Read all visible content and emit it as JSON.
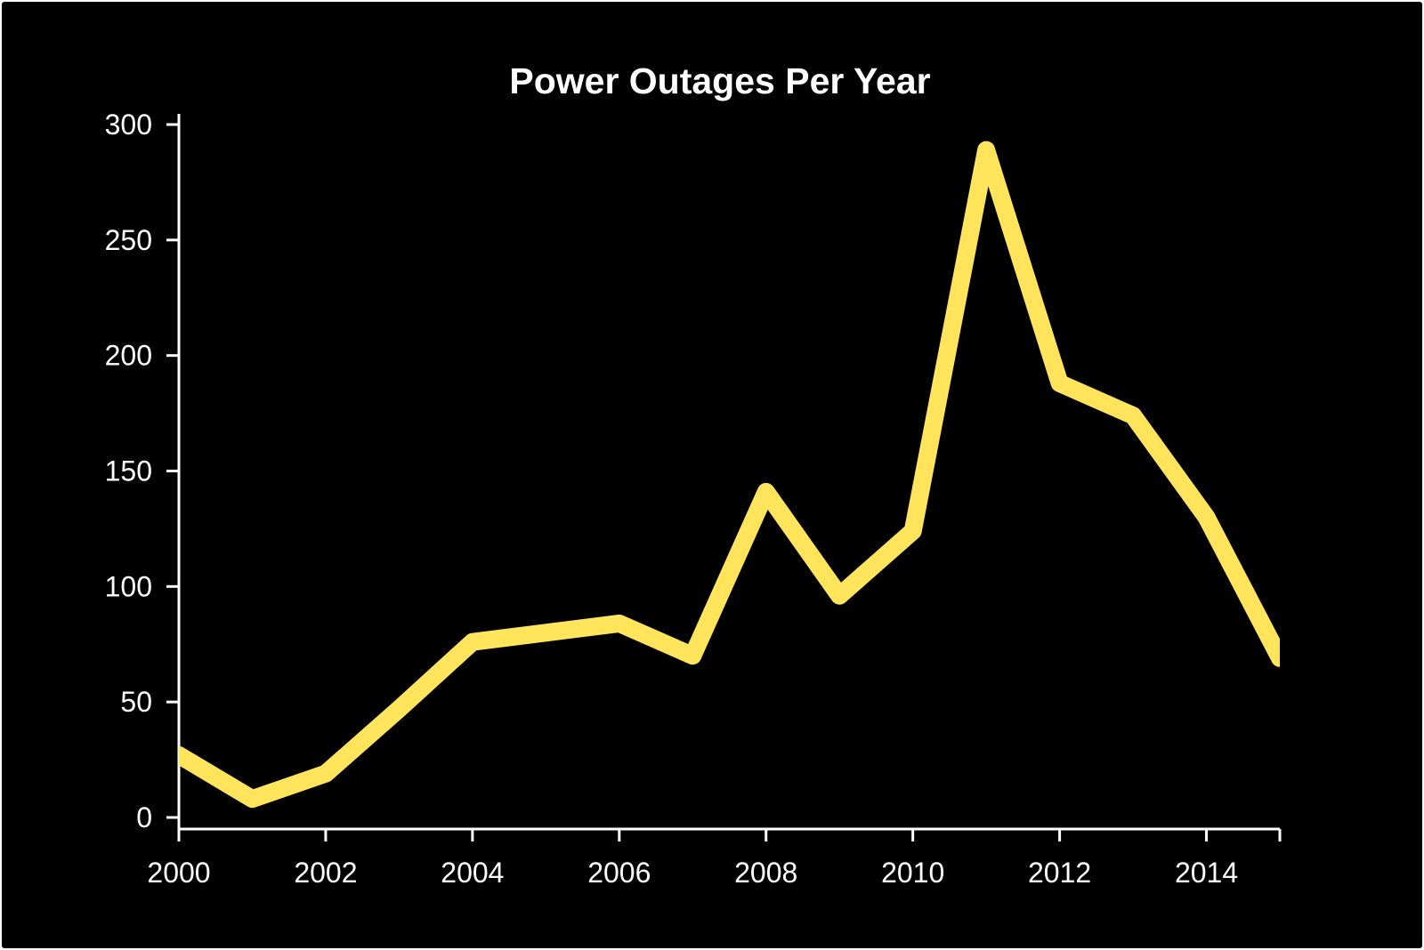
{
  "chart_data": {
    "type": "line",
    "title": "Power Outages Per Year",
    "xlabel": "",
    "ylabel": "",
    "x": [
      2000,
      2001,
      2002,
      2003,
      2004,
      2005,
      2006,
      2007,
      2008,
      2009,
      2010,
      2011,
      2012,
      2013,
      2014,
      2015
    ],
    "series": [
      {
        "values": [
          27,
          8,
          19,
          47,
          76,
          80,
          84,
          70,
          141,
          96,
          124,
          289,
          188,
          174,
          130,
          69
        ],
        "color": "#ffe45c"
      }
    ],
    "xlim": [
      2000,
      2015
    ],
    "ylim": [
      0,
      300
    ],
    "xticks": [
      "2000",
      "2002",
      "2004",
      "2006",
      "2008",
      "2010",
      "2012",
      "2014"
    ],
    "yticks": [
      "0",
      "50",
      "100",
      "150",
      "200",
      "250",
      "300"
    ],
    "grid": false,
    "legend": "none",
    "colors": {
      "background": "#000000",
      "axis": "#ffffff",
      "text": "#ffffff",
      "line": "#ffe45c"
    }
  }
}
